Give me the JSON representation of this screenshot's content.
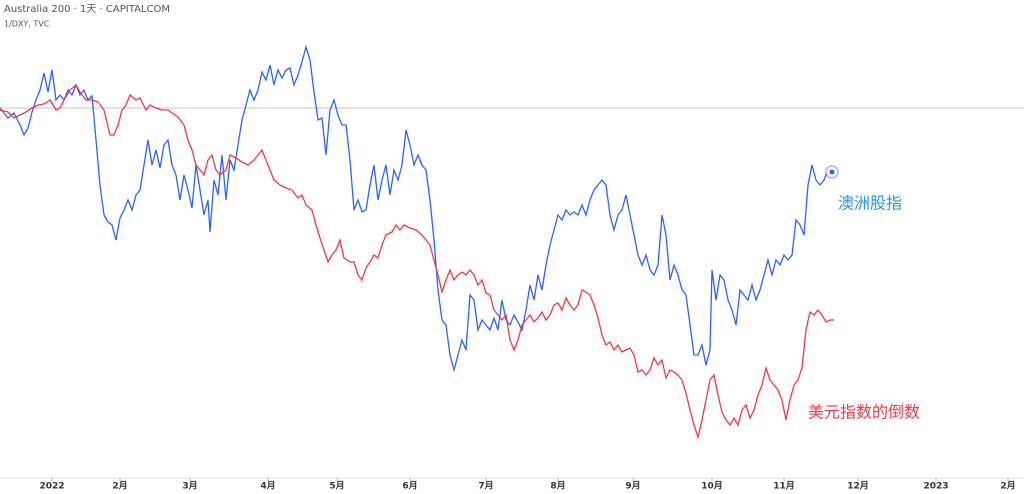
{
  "chart_data": {
    "type": "line",
    "title": "Australia 200 · 1天 · CAPITALCOM",
    "subtitle": "1/DXY, TVC",
    "xlim": [
      0,
      1024
    ],
    "ylim": [
      0,
      480
    ],
    "xticks": [
      {
        "value": 52,
        "label": "2022"
      },
      {
        "value": 120,
        "label": "2月"
      },
      {
        "value": 190,
        "label": "3月"
      },
      {
        "value": 268,
        "label": "4月"
      },
      {
        "value": 337,
        "label": "5月"
      },
      {
        "value": 410,
        "label": "6月"
      },
      {
        "value": 486,
        "label": "7月"
      },
      {
        "value": 558,
        "label": "8月"
      },
      {
        "value": 633,
        "label": "9月"
      },
      {
        "value": 712,
        "label": "10月"
      },
      {
        "value": 784,
        "label": "11月"
      },
      {
        "value": 858,
        "label": "12月"
      },
      {
        "value": 936,
        "label": "2023"
      },
      {
        "value": 1008,
        "label": "2月"
      }
    ],
    "series": [
      {
        "name": "澳洲股指",
        "color": "#2962ff",
        "x": [
          0,
          8,
          14,
          20,
          24,
          28,
          32,
          36,
          40,
          44,
          48,
          52,
          56,
          60,
          64,
          68,
          72,
          76,
          80,
          84,
          88,
          92,
          96,
          100,
          104,
          108,
          112,
          116,
          120,
          124,
          128,
          132,
          136,
          140,
          144,
          148,
          152,
          156,
          160,
          164,
          168,
          172,
          176,
          180,
          184,
          188,
          192,
          196,
          200,
          204,
          208,
          210,
          214,
          218,
          222,
          226,
          230,
          234,
          238,
          242,
          246,
          250,
          254,
          258,
          262,
          266,
          270,
          274,
          278,
          282,
          286,
          290,
          294,
          298,
          302,
          306,
          310,
          314,
          318,
          322,
          326,
          330,
          334,
          338,
          342,
          346,
          350,
          354,
          358,
          362,
          366,
          370,
          374,
          378,
          382,
          386,
          390,
          394,
          398,
          402,
          406,
          410,
          414,
          418,
          422,
          426,
          430,
          434,
          438,
          442,
          446,
          450,
          454,
          458,
          462,
          466,
          470,
          474,
          478,
          482,
          486,
          490,
          494,
          498,
          502,
          506,
          510,
          514,
          518,
          522,
          526,
          530,
          534,
          538,
          542,
          546,
          550,
          554,
          558,
          562,
          566,
          570,
          574,
          578,
          582,
          586,
          590,
          594,
          598,
          602,
          606,
          610,
          614,
          618,
          622,
          626,
          630,
          634,
          638,
          642,
          646,
          650,
          654,
          658,
          662,
          666,
          670,
          674,
          678,
          682,
          686,
          690,
          694,
          698,
          702,
          706,
          710,
          712,
          716,
          720,
          724,
          728,
          732,
          736,
          740,
          744,
          748,
          752,
          756,
          760,
          764,
          768,
          772,
          776,
          780,
          784,
          788,
          792,
          796,
          800,
          804,
          808,
          812,
          816,
          820,
          824,
          828,
          832
        ],
        "values": [
          372,
          362,
          367,
          355,
          345,
          352,
          368,
          380,
          390,
          407,
          388,
          410,
          380,
          385,
          380,
          390,
          385,
          395,
          385,
          390,
          380,
          384,
          340,
          295,
          265,
          258,
          255,
          240,
          262,
          270,
          280,
          270,
          285,
          290,
          315,
          340,
          315,
          330,
          312,
          335,
          340,
          315,
          305,
          280,
          305,
          290,
          272,
          315,
          290,
          265,
          280,
          248,
          300,
          285,
          325,
          280,
          320,
          310,
          335,
          360,
          375,
          390,
          380,
          390,
          408,
          400,
          415,
          395,
          410,
          402,
          410,
          412,
          395,
          405,
          418,
          433,
          420,
          388,
          360,
          362,
          325,
          370,
          380,
          365,
          355,
          355,
          320,
          270,
          280,
          268,
          270,
          295,
          315,
          280,
          300,
          315,
          285,
          310,
          300,
          315,
          350,
          335,
          315,
          325,
          315,
          310,
          280,
          240,
          190,
          160,
          155,
          125,
          110,
          125,
          140,
          130,
          185,
          180,
          150,
          160,
          155,
          150,
          162,
          150,
          180,
          160,
          155,
          165,
          158,
          150,
          170,
          195,
          180,
          205,
          190,
          215,
          235,
          250,
          265,
          260,
          270,
          265,
          268,
          265,
          275,
          265,
          280,
          290,
          295,
          300,
          295,
          265,
          250,
          265,
          270,
          285,
          265,
          245,
          225,
          215,
          225,
          210,
          205,
          215,
          265,
          245,
          200,
          215,
          205,
          190,
          185,
          155,
          125,
          125,
          135,
          115,
          130,
          210,
          180,
          205,
          200,
          180,
          170,
          155,
          190,
          185,
          180,
          195,
          180,
          190,
          205,
          220,
          205,
          220,
          215,
          225,
          220,
          225,
          260,
          255,
          245,
          295,
          315,
          300,
          295,
          300,
          310,
          308
        ]
      },
      {
        "name": "美元指数的倒数",
        "color": "#f23645",
        "x": [
          0,
          8,
          14,
          20,
          26,
          32,
          38,
          44,
          50,
          56,
          60,
          64,
          70,
          76,
          80,
          86,
          92,
          98,
          104,
          110,
          114,
          118,
          122,
          126,
          130,
          136,
          140,
          146,
          150,
          156,
          162,
          168,
          172,
          178,
          184,
          188,
          192,
          196,
          200,
          204,
          208,
          212,
          216,
          220,
          226,
          230,
          236,
          242,
          248,
          254,
          258,
          262,
          266,
          270,
          274,
          280,
          286,
          292,
          298,
          302,
          306,
          312,
          316,
          320,
          324,
          328,
          332,
          336,
          340,
          344,
          350,
          354,
          358,
          362,
          366,
          370,
          374,
          378,
          382,
          386,
          392,
          396,
          400,
          404,
          410,
          416,
          422,
          426,
          430,
          434,
          438,
          442,
          446,
          450,
          454,
          458,
          462,
          466,
          470,
          474,
          478,
          482,
          486,
          490,
          494,
          498,
          502,
          506,
          510,
          514,
          518,
          522,
          526,
          530,
          534,
          538,
          542,
          546,
          550,
          554,
          558,
          562,
          566,
          570,
          574,
          578,
          582,
          586,
          590,
          594,
          598,
          602,
          606,
          610,
          614,
          618,
          622,
          626,
          630,
          634,
          638,
          642,
          646,
          650,
          654,
          658,
          662,
          666,
          670,
          674,
          678,
          682,
          686,
          690,
          694,
          698,
          702,
          706,
          710,
          714,
          718,
          722,
          726,
          730,
          734,
          738,
          742,
          746,
          750,
          754,
          758,
          762,
          766,
          770,
          774,
          778,
          782,
          786,
          790,
          794,
          798,
          802,
          806,
          810,
          814,
          818,
          822,
          826,
          830,
          834
        ],
        "values": [
          370,
          368,
          362,
          365,
          368,
          372,
          375,
          376,
          380,
          370,
          372,
          380,
          390,
          395,
          388,
          380,
          380,
          378,
          370,
          345,
          345,
          355,
          370,
          375,
          385,
          380,
          382,
          370,
          375,
          372,
          370,
          370,
          367,
          363,
          355,
          340,
          330,
          315,
          310,
          305,
          320,
          325,
          310,
          305,
          310,
          325,
          322,
          318,
          315,
          320,
          325,
          330,
          320,
          310,
          300,
          295,
          292,
          290,
          282,
          285,
          275,
          270,
          255,
          242,
          230,
          218,
          225,
          230,
          240,
          222,
          218,
          218,
          205,
          200,
          212,
          218,
          225,
          222,
          235,
          245,
          248,
          255,
          250,
          255,
          252,
          250,
          245,
          240,
          235,
          220,
          205,
          188,
          200,
          210,
          200,
          205,
          208,
          205,
          210,
          205,
          195,
          200,
          187,
          185,
          170,
          165,
          160,
          165,
          140,
          130,
          140,
          155,
          160,
          165,
          158,
          162,
          168,
          160,
          165,
          175,
          177,
          170,
          182,
          175,
          170,
          175,
          190,
          188,
          185,
          175,
          162,
          145,
          135,
          138,
          130,
          135,
          128,
          130,
          132,
          125,
          108,
          110,
          105,
          110,
          122,
          115,
          120,
          102,
          110,
          108,
          105,
          100,
          87,
          70,
          55,
          43,
          60,
          80,
          100,
          105,
          85,
          68,
          60,
          55,
          62,
          55,
          70,
          75,
          62,
          70,
          85,
          95,
          112,
          100,
          95,
          90,
          80,
          60,
          80,
          95,
          100,
          112,
          150,
          168,
          165,
          170,
          165,
          158,
          160,
          160
        ]
      }
    ]
  }
}
